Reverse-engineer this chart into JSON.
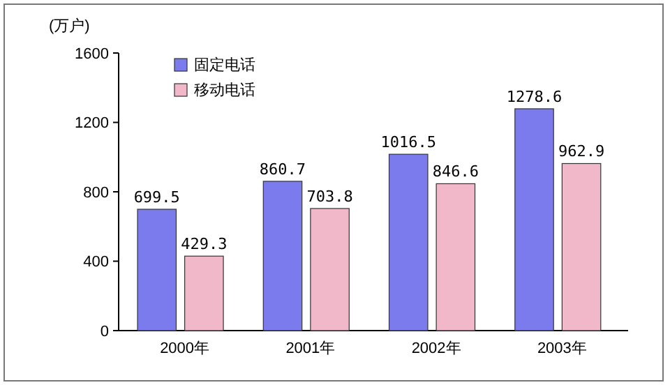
{
  "chart_data": {
    "type": "bar",
    "ylabel": "(万户)",
    "categories": [
      "2000年",
      "2001年",
      "2002年",
      "2003年"
    ],
    "series": [
      {
        "name": "固定电话",
        "color": "#7b7bee",
        "values": [
          699.5,
          860.7,
          1016.5,
          1278.6
        ]
      },
      {
        "name": "移动电话",
        "color": "#f0b8c8",
        "values": [
          429.3,
          703.8,
          846.6,
          962.9
        ]
      }
    ],
    "ylim": [
      0,
      1600
    ],
    "yticks": [
      0,
      400,
      800,
      1200,
      1600
    ],
    "data_labels": true,
    "legend": "top left",
    "grid": false
  }
}
